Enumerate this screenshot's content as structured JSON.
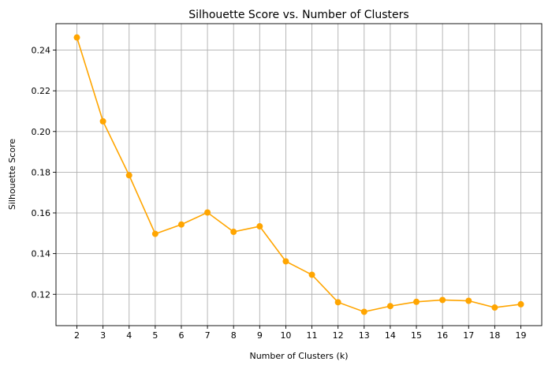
{
  "chart_data": {
    "type": "line",
    "title": "Silhouette Score vs. Number of Clusters",
    "xlabel": "Number of Clusters (k)",
    "ylabel": "Silhouette Score",
    "x": [
      2,
      3,
      4,
      5,
      6,
      7,
      8,
      9,
      10,
      11,
      12,
      13,
      14,
      15,
      16,
      17,
      18,
      19
    ],
    "series": [
      {
        "values": [
          0.2462,
          0.205,
          0.1785,
          0.1497,
          0.1543,
          0.1602,
          0.1507,
          0.1534,
          0.1362,
          0.1296,
          0.1161,
          0.1114,
          0.1142,
          0.1163,
          0.1172,
          0.1168,
          0.1135,
          0.1151
        ],
        "color": "#ffa500",
        "marker": "circle"
      }
    ],
    "xlim": [
      1.2,
      19.8
    ],
    "ylim": [
      0.1046,
      0.253
    ],
    "xticks": [
      "2",
      "3",
      "4",
      "5",
      "6",
      "7",
      "8",
      "9",
      "10",
      "11",
      "12",
      "13",
      "14",
      "15",
      "16",
      "17",
      "18",
      "19"
    ],
    "yticks": [
      "0.12",
      "0.14",
      "0.16",
      "0.18",
      "0.20",
      "0.22",
      "0.24"
    ],
    "grid": true,
    "legend": "none"
  }
}
